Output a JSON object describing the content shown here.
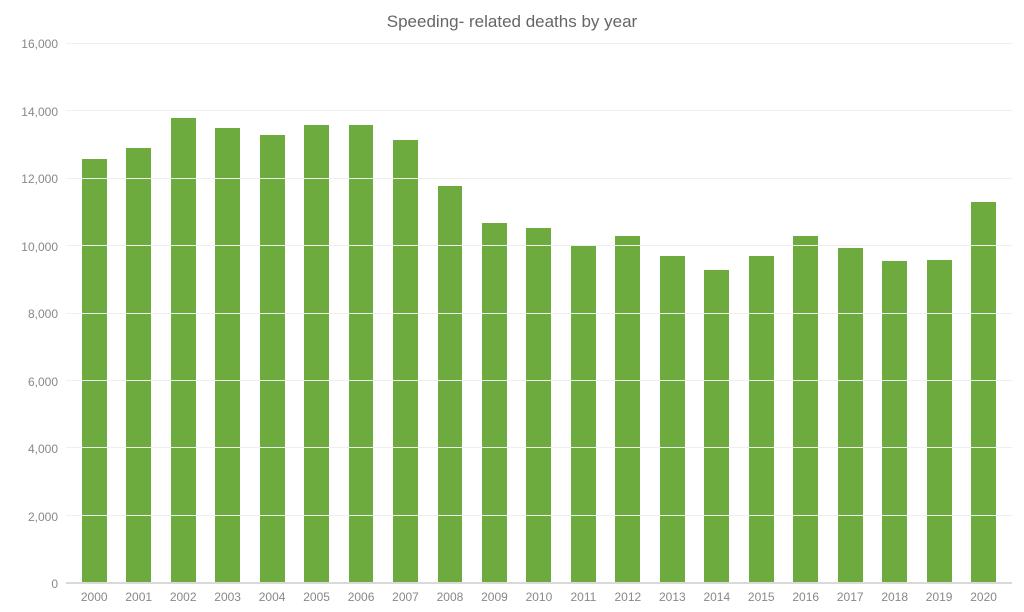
{
  "chart": {
    "type": "bar",
    "title": "Speeding- related deaths by year",
    "title_fontsize": 17,
    "title_color": "#666666",
    "label_fontsize": 12,
    "label_color": "#888888",
    "background_color": "#ffffff",
    "grid_color": "#efefef",
    "axis_line_color": "#d9d9d9",
    "bar_color": "#6eab3e",
    "bar_width": 0.56,
    "ylim": [
      0,
      16000
    ],
    "ytick_step": 2000,
    "yticks": [
      {
        "value": 0,
        "label": "0"
      },
      {
        "value": 2000,
        "label": "2,000"
      },
      {
        "value": 4000,
        "label": "4,000"
      },
      {
        "value": 6000,
        "label": "6,000"
      },
      {
        "value": 8000,
        "label": "8,000"
      },
      {
        "value": 10000,
        "label": "10,000"
      },
      {
        "value": 12000,
        "label": "12,000"
      },
      {
        "value": 14000,
        "label": "14,000"
      },
      {
        "value": 16000,
        "label": "16,000"
      }
    ],
    "categories": [
      "2000",
      "2001",
      "2002",
      "2003",
      "2004",
      "2005",
      "2006",
      "2007",
      "2008",
      "2009",
      "2010",
      "2011",
      "2012",
      "2013",
      "2014",
      "2015",
      "2016",
      "2017",
      "2018",
      "2019",
      "2020"
    ],
    "values": [
      12600,
      12900,
      13800,
      13500,
      13300,
      13600,
      13600,
      13150,
      11800,
      10700,
      10550,
      10000,
      10300,
      9700,
      9300,
      9700,
      10300,
      9950,
      9550,
      9600,
      11300
    ]
  }
}
